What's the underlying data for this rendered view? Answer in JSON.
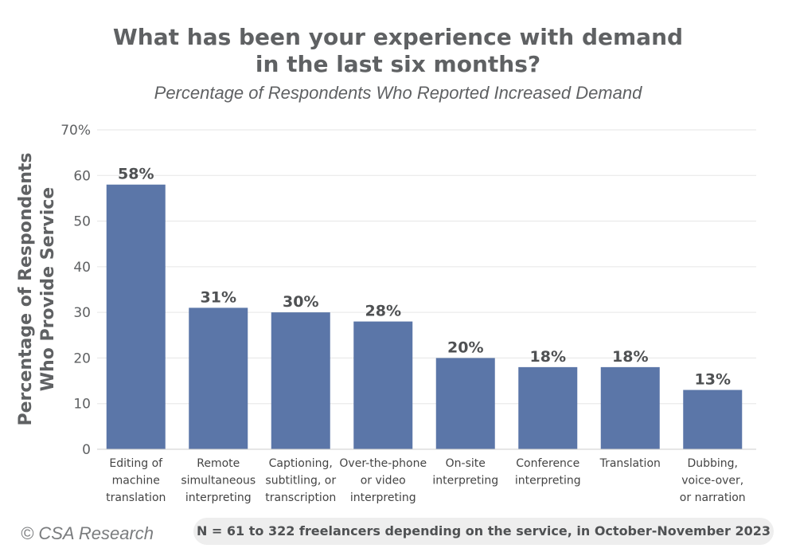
{
  "chart_data": {
    "type": "bar",
    "title_line1": "What has been your experience with demand",
    "title_line2": "in the last six months?",
    "subtitle": "Percentage of Respondents Who Reported Increased Demand",
    "ylabel_line1": "Percentage of Respondents",
    "ylabel_line2": "Who Provide Service",
    "ylim": [
      0,
      70
    ],
    "yticks": [
      "0",
      "10",
      "20",
      "30",
      "40",
      "50",
      "60",
      "70%"
    ],
    "grid": true,
    "bar_color": "#5b76a8",
    "categories": [
      [
        "Editing of",
        "machine",
        "translation"
      ],
      [
        "Remote",
        "simultaneous",
        "interpreting"
      ],
      [
        "Captioning,",
        "subtitling, or",
        "transcription"
      ],
      [
        "Over-the-phone",
        "or video",
        "interpreting"
      ],
      [
        "On-site",
        "interpreting"
      ],
      [
        "Conference",
        "interpreting"
      ],
      [
        "Translation"
      ],
      [
        "Dubbing,",
        "voice-over,",
        "or narration"
      ]
    ],
    "values": [
      58,
      31,
      30,
      28,
      20,
      18,
      18,
      13
    ],
    "data_labels": [
      "58%",
      "31%",
      "30%",
      "28%",
      "20%",
      "18%",
      "18%",
      "13%"
    ]
  },
  "footer": {
    "copyright": "© CSA Research",
    "note": "N = 61 to 322 freelancers depending on the service, in October-November 2023"
  }
}
